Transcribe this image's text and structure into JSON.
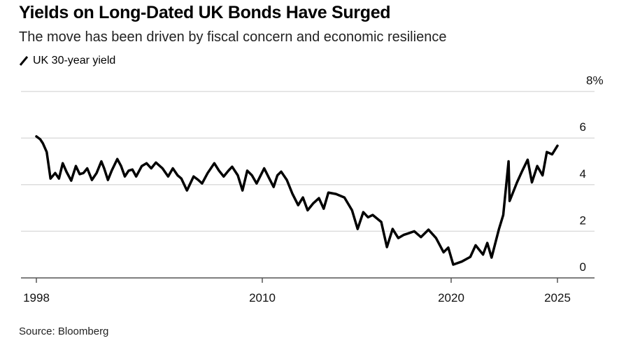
{
  "title": "Yields on Long-Dated UK Bonds Have Surged",
  "subtitle": "The move has been driven by fiscal concern and economic resilience",
  "source": "Source: Bloomberg",
  "chart_data": {
    "type": "line",
    "title": "Yields on Long-Dated UK Bonds Have Surged",
    "xlabel": "",
    "ylabel": "",
    "ylim": [
      0,
      8
    ],
    "xlim": [
      1998,
      2025
    ],
    "y_ticks": [
      "0",
      "2",
      "4",
      "6",
      "8%"
    ],
    "y_tick_values": [
      0,
      2,
      4,
      6,
      8
    ],
    "x_ticks": [
      "1998",
      "2010",
      "2020",
      "2025"
    ],
    "x_tick_values": [
      1998,
      2010,
      2020,
      2025
    ],
    "grid": true,
    "legend": "top-left",
    "series": [
      {
        "name": "UK 30-year yield",
        "color": "#000000",
        "points": [
          [
            1998.0,
            6.07
          ],
          [
            1998.2,
            5.95
          ],
          [
            1998.35,
            5.77
          ],
          [
            1998.55,
            5.4
          ],
          [
            1998.75,
            4.26
          ],
          [
            1999.0,
            4.5
          ],
          [
            1999.2,
            4.26
          ],
          [
            1999.4,
            4.92
          ],
          [
            1999.6,
            4.55
          ],
          [
            1999.85,
            4.17
          ],
          [
            2000.1,
            4.8
          ],
          [
            2000.3,
            4.45
          ],
          [
            2000.5,
            4.5
          ],
          [
            2000.7,
            4.7
          ],
          [
            2000.95,
            4.2
          ],
          [
            2001.2,
            4.5
          ],
          [
            2001.45,
            5.0
          ],
          [
            2001.6,
            4.7
          ],
          [
            2001.8,
            4.2
          ],
          [
            2002.0,
            4.6
          ],
          [
            2002.3,
            5.1
          ],
          [
            2002.5,
            4.8
          ],
          [
            2002.7,
            4.35
          ],
          [
            2002.9,
            4.6
          ],
          [
            2003.1,
            4.65
          ],
          [
            2003.3,
            4.35
          ],
          [
            2003.6,
            4.8
          ],
          [
            2003.85,
            4.92
          ],
          [
            2004.1,
            4.7
          ],
          [
            2004.35,
            4.95
          ],
          [
            2004.7,
            4.7
          ],
          [
            2005.0,
            4.35
          ],
          [
            2005.25,
            4.7
          ],
          [
            2005.5,
            4.4
          ],
          [
            2005.7,
            4.26
          ],
          [
            2006.0,
            3.75
          ],
          [
            2006.35,
            4.35
          ],
          [
            2006.6,
            4.2
          ],
          [
            2006.8,
            4.05
          ],
          [
            2007.1,
            4.5
          ],
          [
            2007.45,
            4.92
          ],
          [
            2007.7,
            4.6
          ],
          [
            2007.95,
            4.35
          ],
          [
            2008.2,
            4.6
          ],
          [
            2008.4,
            4.77
          ],
          [
            2008.7,
            4.4
          ],
          [
            2008.95,
            3.75
          ],
          [
            2009.2,
            4.6
          ],
          [
            2009.45,
            4.4
          ],
          [
            2009.7,
            4.05
          ],
          [
            2010.1,
            4.7
          ],
          [
            2010.35,
            4.3
          ],
          [
            2010.6,
            3.9
          ],
          [
            2010.8,
            4.4
          ],
          [
            2011.0,
            4.56
          ],
          [
            2011.3,
            4.2
          ],
          [
            2011.6,
            3.6
          ],
          [
            2011.9,
            3.12
          ],
          [
            2012.15,
            3.45
          ],
          [
            2012.4,
            2.9
          ],
          [
            2012.7,
            3.2
          ],
          [
            2013.0,
            3.42
          ],
          [
            2013.25,
            2.97
          ],
          [
            2013.5,
            3.66
          ],
          [
            2013.9,
            3.6
          ],
          [
            2014.35,
            3.45
          ],
          [
            2014.75,
            2.9
          ],
          [
            2015.05,
            2.1
          ],
          [
            2015.35,
            2.82
          ],
          [
            2015.6,
            2.6
          ],
          [
            2015.85,
            2.7
          ],
          [
            2016.3,
            2.4
          ],
          [
            2016.6,
            1.32
          ],
          [
            2016.9,
            2.1
          ],
          [
            2017.2,
            1.71
          ],
          [
            2017.5,
            1.85
          ],
          [
            2017.7,
            1.9
          ],
          [
            2018.05,
            2.0
          ],
          [
            2018.4,
            1.75
          ],
          [
            2018.8,
            2.07
          ],
          [
            2019.2,
            1.71
          ],
          [
            2019.6,
            1.1
          ],
          [
            2019.85,
            1.3
          ],
          [
            2020.1,
            0.57
          ],
          [
            2020.5,
            0.7
          ],
          [
            2020.9,
            0.9
          ],
          [
            2021.15,
            1.4
          ],
          [
            2021.5,
            1.0
          ],
          [
            2021.7,
            1.5
          ],
          [
            2021.9,
            0.87
          ],
          [
            2022.25,
            2.1
          ],
          [
            2022.45,
            2.7
          ],
          [
            2022.7,
            5.0
          ],
          [
            2022.75,
            3.3
          ],
          [
            2023.1,
            4.1
          ],
          [
            2023.35,
            4.6
          ],
          [
            2023.6,
            5.07
          ],
          [
            2023.8,
            4.1
          ],
          [
            2024.05,
            4.8
          ],
          [
            2024.3,
            4.4
          ],
          [
            2024.5,
            5.4
          ],
          [
            2024.75,
            5.3
          ],
          [
            2025.0,
            5.67
          ]
        ]
      }
    ]
  }
}
